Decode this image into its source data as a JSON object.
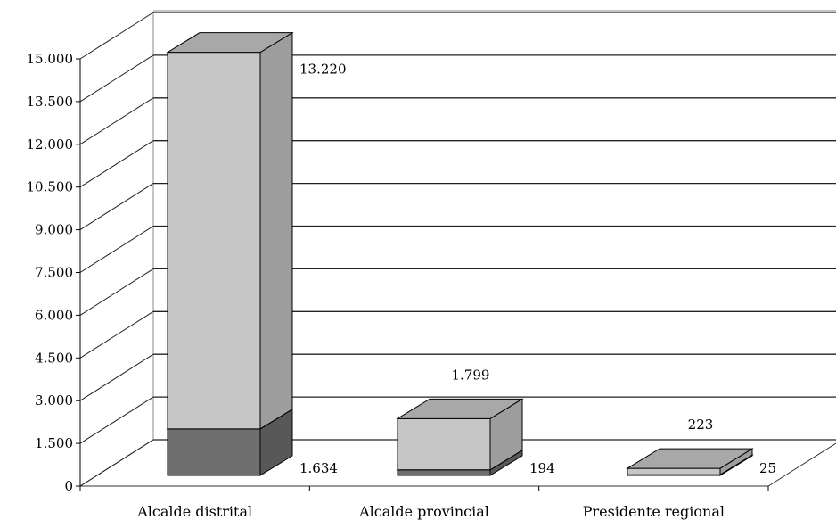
{
  "chart_data": {
    "type": "bar",
    "stacked": true,
    "three_d": true,
    "categories": [
      "Alcalde distrital",
      "Alcalde provincial",
      "Presidente regional"
    ],
    "series": [
      {
        "values": [
          1634,
          194,
          25
        ],
        "color": "#6e6e6e"
      },
      {
        "values": [
          13220,
          1799,
          223
        ],
        "color": "#c6c6c6"
      }
    ],
    "ylim": [
      0,
      15000
    ],
    "yticks": [
      0,
      1500,
      3000,
      4500,
      6000,
      7500,
      9000,
      10500,
      12000,
      13500,
      15000
    ],
    "ytick_labels": [
      "0",
      "1.500",
      "3.000",
      "4.500",
      "6.000",
      "7.500",
      "9.000",
      "10.500",
      "12.000",
      "13.500",
      "15.000"
    ],
    "data_labels": {
      "bottom": [
        "1.634",
        "194",
        "25"
      ],
      "top": [
        "13.220",
        "1.799",
        "223"
      ]
    },
    "grid": true,
    "legend": "none"
  }
}
